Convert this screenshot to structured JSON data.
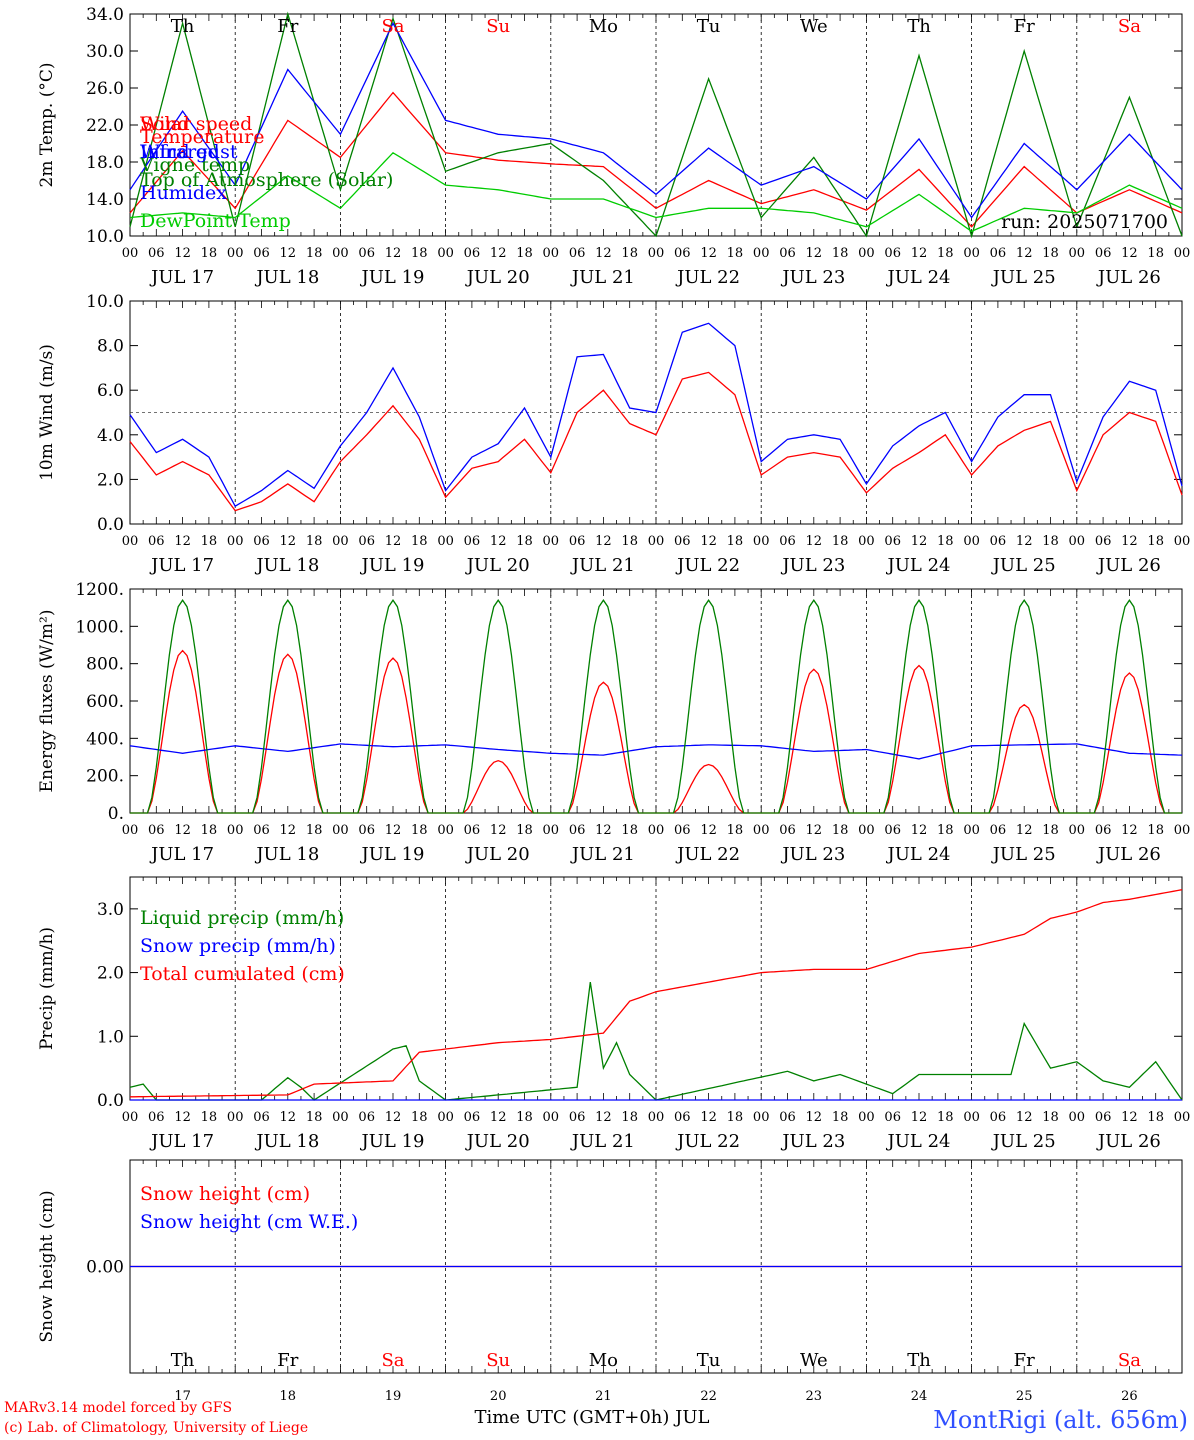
{
  "run_label": "run: 2025071700",
  "footer": {
    "credit_line1": "MARv3.14 model forced by GFS",
    "credit_line2": "(c) Lab. of Climatology, University of Liege",
    "xlabel": "Time UTC (GMT+0h) JUL",
    "station": "MontRigi (alt. 656m)"
  },
  "colors": {
    "red": "#ff0000",
    "blue": "#0000ff",
    "green": "#008000",
    "lightgreen": "#00cc00",
    "weekend": "#ff0000",
    "weekday": "#000000"
  },
  "chart_data": {
    "x_days": [
      {
        "date": "JUL 17",
        "dow": "Th",
        "daynum": "17",
        "weekend": false
      },
      {
        "date": "JUL 18",
        "dow": "Fr",
        "daynum": "18",
        "weekend": false
      },
      {
        "date": "JUL 19",
        "dow": "Sa",
        "daynum": "19",
        "weekend": true
      },
      {
        "date": "JUL 20",
        "dow": "Su",
        "daynum": "20",
        "weekend": true
      },
      {
        "date": "JUL 21",
        "dow": "Mo",
        "daynum": "21",
        "weekend": false
      },
      {
        "date": "JUL 22",
        "dow": "Tu",
        "daynum": "22",
        "weekend": false
      },
      {
        "date": "JUL 23",
        "dow": "We",
        "daynum": "23",
        "weekend": false
      },
      {
        "date": "JUL 24",
        "dow": "Th",
        "daynum": "24",
        "weekend": false
      },
      {
        "date": "JUL 25",
        "dow": "Fr",
        "daynum": "25",
        "weekend": false
      },
      {
        "date": "JUL 26",
        "dow": "Sa",
        "daynum": "26",
        "weekend": true
      }
    ],
    "hour_labels": [
      "00",
      "06",
      "12",
      "18"
    ],
    "panels": [
      {
        "type": "line",
        "ylabel": "2m Temp. (°C)",
        "ylim": [
          10,
          34
        ],
        "yticks": [
          "10.0",
          "14.0",
          "18.0",
          "22.0",
          "26.0",
          "30.0",
          "34.0"
        ],
        "show_dow": true,
        "series": [
          {
            "name": "Temperature",
            "color": "red",
            "x": [
              0,
              12,
              24,
              36,
              48,
              60,
              72,
              84,
              96,
              108,
              120,
              132,
              144,
              156,
              168,
              180,
              192,
              204,
              216,
              228,
              240
            ],
            "values": [
              12.5,
              19.2,
              13,
              22.5,
              18.5,
              25.5,
              19,
              18.2,
              17.8,
              17.5,
              13,
              16,
              13.5,
              15,
              12.8,
              17.2,
              11,
              17.5,
              12.5,
              15,
              12.5
            ]
          },
          {
            "name": "Vigne temp",
            "color": "green",
            "x": [
              0,
              12,
              24,
              36,
              48,
              60,
              72,
              84,
              96,
              108,
              120,
              132,
              144,
              156,
              168,
              180,
              192,
              204,
              216,
              228,
              240
            ],
            "values": [
              11,
              33,
              11,
              34,
              15,
              33.5,
              17,
              19,
              20,
              16,
              10,
              27,
              12,
              18.5,
              10,
              29.5,
              10,
              30,
              11,
              25,
              10
            ]
          },
          {
            "name": "Humidex",
            "color": "blue",
            "x": [
              0,
              12,
              24,
              36,
              48,
              60,
              72,
              84,
              96,
              108,
              120,
              132,
              144,
              156,
              168,
              180,
              192,
              204,
              216,
              228,
              240
            ],
            "values": [
              15,
              23.5,
              15.5,
              28,
              21,
              33,
              22.5,
              21,
              20.5,
              19,
              14.5,
              19.5,
              15.5,
              17.5,
              14,
              20.5,
              12,
              20,
              15,
              21,
              15
            ]
          },
          {
            "name": "DewPoint Temp",
            "color": "lightgreen",
            "x": [
              0,
              12,
              24,
              36,
              48,
              60,
              72,
              84,
              96,
              108,
              120,
              132,
              144,
              156,
              168,
              180,
              192,
              204,
              216,
              228,
              240
            ],
            "values": [
              12,
              12.5,
              12,
              16.5,
              13,
              19,
              15.5,
              15,
              14,
              14,
              12,
              13,
              13,
              12.5,
              11,
              14.5,
              10.5,
              13,
              12.5,
              15.5,
              13
            ]
          }
        ]
      },
      {
        "type": "line",
        "ylabel": "10m Wind (m/s)",
        "ylim": [
          0,
          10
        ],
        "yticks": [
          "0.0",
          "2.0",
          "4.0",
          "6.0",
          "8.0",
          "10.0"
        ],
        "refline": 5,
        "series": [
          {
            "name": "Wind speed",
            "color": "red",
            "x": [
              0,
              6,
              12,
              18,
              24,
              30,
              36,
              42,
              48,
              54,
              60,
              66,
              72,
              78,
              84,
              90,
              96,
              102,
              108,
              114,
              120,
              126,
              132,
              138,
              144,
              150,
              156,
              162,
              168,
              174,
              180,
              186,
              192,
              198,
              204,
              210,
              216,
              222,
              228,
              234,
              240
            ],
            "values": [
              3.7,
              2.2,
              2.8,
              2.2,
              0.6,
              1,
              1.8,
              1,
              2.8,
              4,
              5.3,
              3.8,
              1.2,
              2.5,
              2.8,
              3.8,
              2.3,
              5,
              6,
              4.5,
              4,
              6.5,
              6.8,
              5.8,
              2.2,
              3,
              3.2,
              3,
              1.4,
              2.5,
              3.2,
              4,
              2.2,
              3.5,
              4.2,
              4.6,
              1.5,
              4,
              5,
              4.6,
              1.3
            ]
          },
          {
            "name": "Wind gust",
            "color": "blue",
            "x": [
              0,
              6,
              12,
              18,
              24,
              30,
              36,
              42,
              48,
              54,
              60,
              66,
              72,
              78,
              84,
              90,
              96,
              102,
              108,
              114,
              120,
              126,
              132,
              138,
              144,
              150,
              156,
              162,
              168,
              174,
              180,
              186,
              192,
              198,
              204,
              210,
              216,
              222,
              228,
              234,
              240
            ],
            "values": [
              4.9,
              3.2,
              3.8,
              3,
              0.8,
              1.5,
              2.4,
              1.6,
              3.5,
              5,
              7,
              4.8,
              1.5,
              3,
              3.6,
              5.2,
              3,
              7.5,
              7.6,
              5.2,
              5,
              8.6,
              9,
              8,
              2.8,
              3.8,
              4,
              3.8,
              1.8,
              3.5,
              4.4,
              5,
              2.8,
              4.8,
              5.8,
              5.8,
              1.9,
              4.8,
              6.4,
              6,
              1.7
            ]
          }
        ]
      },
      {
        "type": "line",
        "ylabel": "Energy fluxes (W/m²)",
        "ylim": [
          0,
          1200
        ],
        "yticks": [
          "0.",
          "200.",
          "400.",
          "600.",
          "800.",
          "1000.",
          "1200."
        ],
        "series": [
          {
            "name": "Solar",
            "color": "red",
            "peaks": [
              870,
              850,
              830,
              280,
              700,
              260,
              770,
              790,
              580,
              750
            ]
          },
          {
            "name": "Infrared",
            "color": "blue",
            "x": [
              0,
              12,
              24,
              36,
              48,
              60,
              72,
              84,
              96,
              108,
              120,
              132,
              144,
              156,
              168,
              180,
              192,
              204,
              216,
              228,
              240
            ],
            "values": [
              360,
              320,
              360,
              330,
              370,
              355,
              365,
              340,
              320,
              310,
              355,
              365,
              360,
              330,
              340,
              290,
              360,
              365,
              370,
              320,
              310
            ]
          },
          {
            "name": "Top of Atmosphere (Solar)",
            "color": "green",
            "peaks": [
              1140,
              1140,
              1140,
              1140,
              1140,
              1140,
              1140,
              1140,
              1140,
              1140
            ]
          }
        ]
      },
      {
        "type": "line",
        "ylabel": "Precip (mm/h)",
        "ylim": [
          0,
          3.5
        ],
        "yticks": [
          "0.0",
          "1.0",
          "2.0",
          "3.0"
        ],
        "series": [
          {
            "name": "Liquid precip (mm/h)",
            "color": "green",
            "x": [
              0,
              3,
              6,
              30,
              36,
              39,
              42,
              60,
              63,
              66,
              72,
              102,
              105,
              108,
              111,
              114,
              120,
              150,
              156,
              162,
              174,
              180,
              201,
              204,
              210,
              216,
              222,
              228,
              234,
              240
            ],
            "values": [
              0.2,
              0.25,
              0,
              0,
              0.35,
              0.2,
              0,
              0.8,
              0.85,
              0.3,
              0,
              0.2,
              1.85,
              0.5,
              0.9,
              0.4,
              0,
              0.45,
              0.3,
              0.4,
              0.1,
              0.4,
              0.4,
              1.2,
              0.5,
              0.6,
              0.3,
              0.2,
              0.6,
              0
            ]
          },
          {
            "name": "Snow precip (mm/h)",
            "color": "blue",
            "x": [
              0,
              240
            ],
            "values": [
              0,
              0
            ]
          },
          {
            "name": "Total cumulated (cm)",
            "color": "red",
            "x": [
              0,
              36,
              42,
              60,
              66,
              72,
              84,
              96,
              108,
              114,
              120,
              132,
              144,
              156,
              168,
              180,
              192,
              204,
              210,
              216,
              222,
              228,
              240
            ],
            "values": [
              0.05,
              0.08,
              0.25,
              0.3,
              0.75,
              0.8,
              0.9,
              0.95,
              1.05,
              1.55,
              1.7,
              1.85,
              2,
              2.05,
              2.05,
              2.3,
              2.4,
              2.6,
              2.85,
              2.95,
              3.1,
              3.15,
              3.3
            ]
          }
        ]
      },
      {
        "type": "line",
        "ylabel": "Snow height (cm)",
        "ylim": [
          -1,
          1
        ],
        "yticks": [
          "0.00"
        ],
        "show_dow": true,
        "show_daynum": true,
        "series": [
          {
            "name": "Snow height (cm)",
            "color": "red",
            "x": [
              0,
              240
            ],
            "values": [
              0,
              0
            ]
          },
          {
            "name": "Snow height (cm W.E.)",
            "color": "blue",
            "x": [
              0,
              240
            ],
            "values": [
              0,
              0
            ]
          }
        ]
      }
    ]
  }
}
